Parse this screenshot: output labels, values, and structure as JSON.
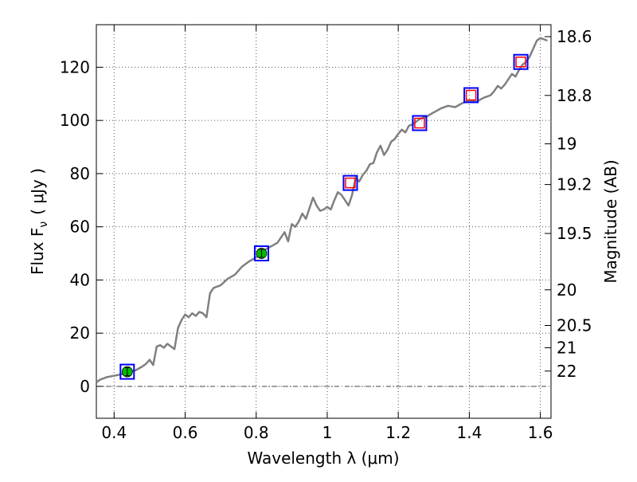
{
  "chart_data": {
    "type": "line",
    "xlabel": "Wavelength  λ (μm)",
    "ylabel_left": "Flux  F",
    "ylabel_left_sub": "ν",
    "ylabel_left_unit": "( μJy )",
    "ylabel_right": "Magnitude (AB)",
    "xlim": [
      0.35,
      1.63
    ],
    "ylim": [
      -12,
      136
    ],
    "x_ticks": [
      0.4,
      0.6,
      0.8,
      1.0,
      1.2,
      1.4,
      1.6
    ],
    "x_tick_labels": [
      "0.4",
      "0.6",
      "0.8",
      "1",
      "1.2",
      "1.4",
      "1.6"
    ],
    "y_ticks": [
      0,
      20,
      40,
      60,
      80,
      100,
      120
    ],
    "y_tick_labels": [
      "0",
      "20",
      "40",
      "60",
      "80",
      "100",
      "120"
    ],
    "right_ticks": [
      {
        "label": "18.6",
        "flux": 131.5
      },
      {
        "label": "18.8",
        "flux": 109.4
      },
      {
        "label": "19",
        "flux": 91.2
      },
      {
        "label": "19.2",
        "flux": 75.9
      },
      {
        "label": "19.5",
        "flux": 57.5
      },
      {
        "label": "20",
        "flux": 36.3
      },
      {
        "label": "20.5",
        "flux": 22.9
      },
      {
        "label": "21",
        "flux": 14.5
      },
      {
        "label": "22",
        "flux": 5.75
      }
    ],
    "grid": true,
    "zero_line": 0,
    "colors": {
      "spectrum": "#808080",
      "model_box": "#0000ff",
      "observed": "#00bb00",
      "synthetic_marker": "#ff0000"
    },
    "spectrum": {
      "x": [
        0.35,
        0.36,
        0.38,
        0.4,
        0.42,
        0.44,
        0.46,
        0.48,
        0.49,
        0.5,
        0.51,
        0.52,
        0.53,
        0.54,
        0.55,
        0.56,
        0.57,
        0.58,
        0.59,
        0.6,
        0.61,
        0.62,
        0.63,
        0.64,
        0.65,
        0.66,
        0.67,
        0.68,
        0.7,
        0.72,
        0.74,
        0.76,
        0.78,
        0.8,
        0.82,
        0.84,
        0.86,
        0.88,
        0.89,
        0.9,
        0.91,
        0.92,
        0.93,
        0.94,
        0.95,
        0.96,
        0.97,
        0.98,
        0.99,
        1.0,
        1.01,
        1.02,
        1.03,
        1.04,
        1.05,
        1.06,
        1.07,
        1.08,
        1.09,
        1.1,
        1.11,
        1.12,
        1.13,
        1.14,
        1.15,
        1.16,
        1.17,
        1.18,
        1.19,
        1.2,
        1.21,
        1.22,
        1.23,
        1.24,
        1.25,
        1.26,
        1.27,
        1.28,
        1.3,
        1.32,
        1.34,
        1.36,
        1.38,
        1.4,
        1.42,
        1.44,
        1.46,
        1.47,
        1.48,
        1.49,
        1.5,
        1.51,
        1.52,
        1.53,
        1.54,
        1.55,
        1.56,
        1.57,
        1.58,
        1.59,
        1.6,
        1.62
      ],
      "y": [
        1.5,
        2.5,
        3.5,
        4.0,
        4.5,
        5.5,
        6.0,
        7.5,
        8.5,
        10.0,
        8.0,
        15.0,
        15.5,
        14.5,
        16.0,
        15.0,
        14.0,
        22.0,
        25.0,
        27.0,
        26.0,
        27.5,
        26.5,
        28.0,
        27.5,
        26.0,
        35.0,
        37.0,
        38.0,
        40.5,
        42.0,
        45.0,
        47.0,
        48.5,
        51.0,
        52.5,
        54.0,
        58.0,
        54.5,
        61.0,
        60.0,
        62.0,
        65.0,
        63.0,
        67.0,
        71.0,
        68.0,
        66.0,
        66.5,
        67.5,
        66.5,
        70.0,
        73.0,
        72.0,
        70.0,
        68.0,
        72.0,
        78.5,
        77.0,
        79.5,
        81.0,
        83.5,
        84.0,
        88.0,
        90.5,
        87.0,
        89.0,
        92.0,
        93.0,
        95.0,
        96.5,
        95.5,
        98.0,
        98.5,
        99.5,
        100.5,
        101.0,
        101.5,
        103.0,
        104.5,
        105.5,
        105.0,
        106.5,
        107.5,
        107.0,
        108.5,
        109.5,
        111.0,
        113.0,
        112.0,
        113.5,
        115.5,
        117.5,
        116.5,
        119.0,
        121.0,
        122.0,
        124.0,
        127.0,
        130.0,
        131.0,
        130.0
      ]
    },
    "photometry_points": [
      {
        "x": 0.437,
        "y": 5.5,
        "observed": true
      },
      {
        "x": 0.815,
        "y": 50.0,
        "observed": true
      },
      {
        "x": 1.065,
        "y": 76.5,
        "observed": false
      },
      {
        "x": 1.26,
        "y": 99.0,
        "observed": false
      },
      {
        "x": 1.405,
        "y": 109.5,
        "observed": false
      },
      {
        "x": 1.545,
        "y": 122.0,
        "observed": false
      }
    ]
  }
}
